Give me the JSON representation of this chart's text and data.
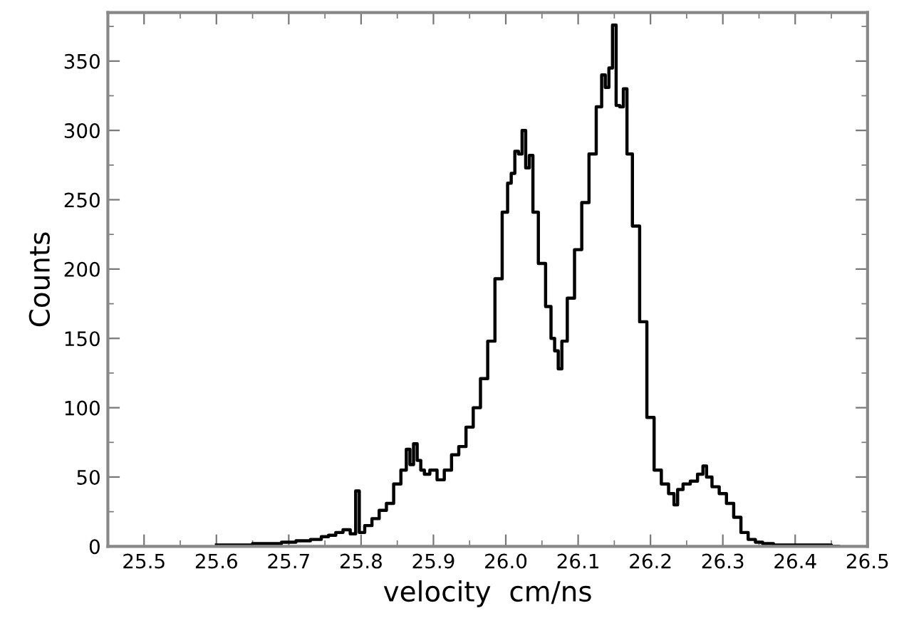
{
  "chart_data": {
    "type": "step",
    "xlabel": "velocity  cm/ns",
    "ylabel": "Counts",
    "xlim": [
      25.45,
      26.5
    ],
    "ylim": [
      0,
      385
    ],
    "xticks": [
      25.5,
      25.6,
      25.7,
      25.8,
      25.9,
      {
        "value": 26.0,
        "label": "26.0"
      },
      26.1,
      26.2,
      26.3,
      26.4,
      26.5
    ],
    "yticks": [
      0,
      50,
      100,
      150,
      200,
      250,
      300,
      350
    ],
    "grid": false,
    "legend": false,
    "series": [
      {
        "color": "#000000",
        "x": [
          25.6,
          25.62,
          25.64,
          25.66,
          25.68,
          25.7,
          25.72,
          25.74,
          25.75,
          25.76,
          25.77,
          25.78,
          25.79,
          25.795,
          25.8,
          25.81,
          25.82,
          25.83,
          25.84,
          25.85,
          25.86,
          25.865,
          25.87,
          25.875,
          25.88,
          25.885,
          25.89,
          25.9,
          25.91,
          25.92,
          25.93,
          25.94,
          25.95,
          25.96,
          25.97,
          25.98,
          25.99,
          26.0,
          26.005,
          26.01,
          26.015,
          26.02,
          26.025,
          26.03,
          26.035,
          26.04,
          26.05,
          26.06,
          26.065,
          26.07,
          26.075,
          26.08,
          26.09,
          26.1,
          26.11,
          26.12,
          26.13,
          26.135,
          26.14,
          26.145,
          26.15,
          26.155,
          26.16,
          26.165,
          26.17,
          26.18,
          26.19,
          26.2,
          26.21,
          26.22,
          26.23,
          26.235,
          26.24,
          26.25,
          26.26,
          26.27,
          26.275,
          26.28,
          26.29,
          26.3,
          26.31,
          26.32,
          26.33,
          26.34,
          26.35,
          26.36,
          26.38,
          26.4,
          26.42,
          26.44,
          26.46
        ],
        "values": [
          1,
          1,
          1,
          2,
          2,
          3,
          4,
          5,
          7,
          8,
          10,
          12,
          9,
          40,
          10,
          15,
          20,
          26,
          31,
          45,
          55,
          70,
          59,
          74,
          62,
          55,
          52,
          55,
          48,
          55,
          66,
          72,
          86,
          100,
          121,
          148,
          193,
          241,
          262,
          269,
          285,
          283,
          300,
          273,
          282,
          241,
          204,
          173,
          150,
          141,
          128,
          148,
          179,
          214,
          248,
          283,
          317,
          340,
          331,
          345,
          376,
          318,
          317,
          330,
          283,
          231,
          162,
          93,
          55,
          45,
          38,
          30,
          41,
          45,
          47,
          52,
          58,
          50,
          43,
          38,
          31,
          21,
          10,
          5,
          3,
          2,
          1,
          1,
          1,
          1,
          0
        ]
      }
    ]
  }
}
